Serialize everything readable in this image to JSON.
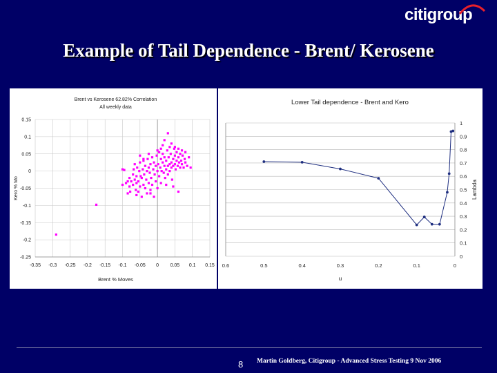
{
  "brand": {
    "logo_text": "citigroup"
  },
  "slide": {
    "title": "Example of Tail Dependence - Brent/ Kerosene",
    "page_number": "8",
    "footer": "Martin Goldberg, Citigroup - Advanced Stress Testing 9 Nov 2006"
  },
  "chart_data": [
    {
      "type": "scatter",
      "title": "Brent vs Kerosene 62.82% Correlation",
      "subtitle": "All weekly data",
      "xlabel": "Brent % Moves",
      "ylabel": "Kero % Mo",
      "xlim": [
        -0.35,
        0.15
      ],
      "ylim": [
        -0.25,
        0.15
      ],
      "xticks": [
        "-0.35",
        "-0.3",
        "-0.25",
        "-0.2",
        "-0.15",
        "-0.1",
        "-0.05",
        "0",
        "0.05",
        "0.1",
        "0.15"
      ],
      "yticks": [
        "0.15",
        "0.1",
        "0.05",
        "0",
        "-0.05",
        "-0.1",
        "-0.15",
        "-0.2",
        "-0.25"
      ],
      "grid": true,
      "marker_color": "#ff00ff",
      "series": [
        {
          "points": [
            [
              -0.29,
              -0.185
            ],
            [
              -0.175,
              -0.098
            ],
            [
              -0.1,
              -0.04
            ],
            [
              -0.1,
              0.005
            ],
            [
              -0.095,
              0.003
            ],
            [
              -0.09,
              -0.035
            ],
            [
              -0.085,
              -0.03
            ],
            [
              -0.085,
              -0.065
            ],
            [
              -0.08,
              -0.045
            ],
            [
              -0.08,
              -0.02
            ],
            [
              -0.078,
              -0.06
            ],
            [
              -0.075,
              -0.03
            ],
            [
              -0.07,
              -0.01
            ],
            [
              -0.07,
              -0.04
            ],
            [
              -0.068,
              0.005
            ],
            [
              -0.065,
              -0.025
            ],
            [
              -0.065,
              0.02
            ],
            [
              -0.062,
              -0.055
            ],
            [
              -0.06,
              -0.015
            ],
            [
              -0.06,
              -0.035
            ],
            [
              -0.058,
              0.01
            ],
            [
              -0.055,
              -0.06
            ],
            [
              -0.055,
              -0.03
            ],
            [
              -0.052,
              0.0
            ],
            [
              -0.05,
              -0.045
            ],
            [
              -0.05,
              0.025
            ],
            [
              -0.048,
              -0.015
            ],
            [
              -0.045,
              -0.075
            ],
            [
              -0.045,
              -0.02
            ],
            [
              -0.042,
              0.005
            ],
            [
              -0.04,
              -0.04
            ],
            [
              -0.04,
              0.03
            ],
            [
              -0.038,
              -0.01
            ],
            [
              -0.035,
              -0.05
            ],
            [
              -0.035,
              0.015
            ],
            [
              -0.032,
              -0.025
            ],
            [
              -0.03,
              0.0
            ],
            [
              -0.03,
              -0.065
            ],
            [
              -0.028,
              0.035
            ],
            [
              -0.025,
              -0.035
            ],
            [
              -0.025,
              0.01
            ],
            [
              -0.022,
              -0.005
            ],
            [
              -0.02,
              -0.055
            ],
            [
              -0.02,
              0.02
            ],
            [
              -0.018,
              -0.02
            ],
            [
              -0.015,
              0.04
            ],
            [
              -0.015,
              -0.04
            ],
            [
              -0.012,
              0.005
            ],
            [
              -0.01,
              -0.075
            ],
            [
              -0.01,
              0.025
            ],
            [
              -0.008,
              -0.01
            ],
            [
              -0.005,
              0.015
            ],
            [
              -0.005,
              -0.03
            ],
            [
              -0.002,
              0.045
            ],
            [
              0.0,
              0.0
            ],
            [
              0.0,
              -0.05
            ],
            [
              0.002,
              0.02
            ],
            [
              0.005,
              0.055
            ],
            [
              0.005,
              -0.015
            ],
            [
              0.008,
              0.01
            ],
            [
              0.01,
              0.035
            ],
            [
              0.01,
              -0.035
            ],
            [
              0.012,
              0.0
            ],
            [
              0.015,
              0.025
            ],
            [
              0.015,
              0.05
            ],
            [
              0.018,
              -0.005
            ],
            [
              0.02,
              0.015
            ],
            [
              0.02,
              0.04
            ],
            [
              0.022,
              -0.02
            ],
            [
              0.025,
              0.005
            ],
            [
              0.025,
              0.03
            ],
            [
              0.028,
              0.06
            ],
            [
              0.03,
              0.015
            ],
            [
              0.03,
              -0.01
            ],
            [
              0.032,
              0.04
            ],
            [
              0.035,
              0.02
            ],
            [
              0.035,
              0.0
            ],
            [
              0.038,
              0.05
            ],
            [
              0.04,
              0.025
            ],
            [
              0.04,
              0.01
            ],
            [
              0.042,
              -0.025
            ],
            [
              0.045,
              0.035
            ],
            [
              0.045,
              0.015
            ],
            [
              0.048,
              0.065
            ],
            [
              0.05,
              0.02
            ],
            [
              0.05,
              0.045
            ],
            [
              0.052,
              0.005
            ],
            [
              0.055,
              0.03
            ],
            [
              0.055,
              0.055
            ],
            [
              0.058,
              0.015
            ],
            [
              0.06,
              0.04
            ],
            [
              0.062,
              0.025
            ],
            [
              0.065,
              0.01
            ],
            [
              0.065,
              0.05
            ],
            [
              0.068,
              0.03
            ],
            [
              0.07,
              0.02
            ],
            [
              0.072,
              0.045
            ],
            [
              0.075,
              0.01
            ],
            [
              0.078,
              0.035
            ],
            [
              0.08,
              0.025
            ],
            [
              0.085,
              0.015
            ],
            [
              0.03,
              0.11
            ],
            [
              0.02,
              0.09
            ],
            [
              0.04,
              0.08
            ],
            [
              -0.02,
              -0.065
            ],
            [
              0.06,
              -0.06
            ],
            [
              0.095,
              0.01
            ],
            [
              0.09,
              0.04
            ],
            [
              0.0,
              0.06
            ],
            [
              -0.05,
              0.045
            ],
            [
              0.015,
              0.075
            ],
            [
              0.035,
              0.07
            ],
            [
              -0.025,
              0.05
            ],
            [
              0.05,
              0.07
            ],
            [
              0.07,
              0.06
            ],
            [
              0.08,
              0.055
            ],
            [
              -0.06,
              -0.07
            ],
            [
              0.025,
              -0.04
            ],
            [
              0.045,
              -0.045
            ],
            [
              0.01,
              0.065
            ],
            [
              -0.04,
              0.035
            ],
            [
              0.06,
              0.065
            ]
          ]
        }
      ]
    },
    {
      "type": "line",
      "title": "Lower Tail dependence - Brent and Kero",
      "xlabel": "u",
      "ylabel": "Lambda",
      "xlim": [
        0.6,
        0
      ],
      "ylim": [
        0,
        1
      ],
      "xticks": [
        "0.6",
        "0.5",
        "0.4",
        "0.3",
        "0.2",
        "0.1",
        "0"
      ],
      "yticks": [
        "1",
        "0.9",
        "0.8",
        "0.7",
        "0.6",
        "0.5",
        "0.4",
        "0.3",
        "0.2",
        "0.1",
        "0"
      ],
      "grid": true,
      "line_color": "#1f2f80",
      "series": [
        {
          "points": [
            [
              0.5,
              0.71
            ],
            [
              0.4,
              0.705
            ],
            [
              0.3,
              0.655
            ],
            [
              0.2,
              0.585
            ],
            [
              0.1,
              0.235
            ],
            [
              0.08,
              0.295
            ],
            [
              0.06,
              0.24
            ],
            [
              0.04,
              0.24
            ],
            [
              0.02,
              0.48
            ],
            [
              0.015,
              0.62
            ],
            [
              0.01,
              0.935
            ],
            [
              0.005,
              0.94
            ]
          ]
        }
      ]
    }
  ]
}
